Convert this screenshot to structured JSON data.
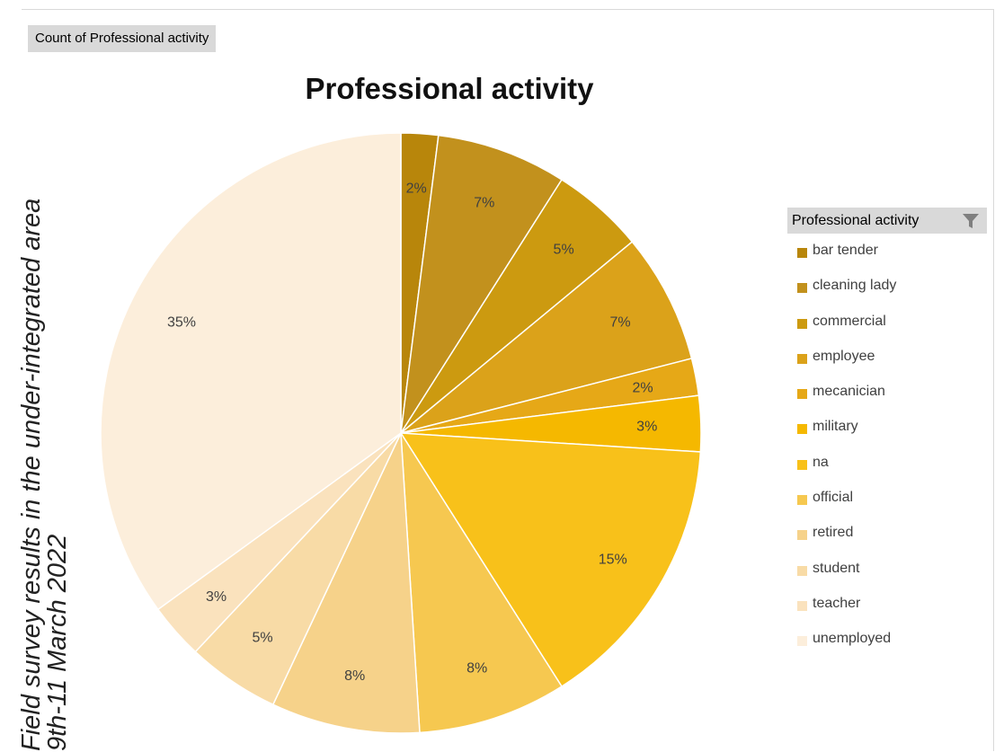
{
  "field_button": "Count of Professional activity",
  "side_caption": {
    "line1": "Field survey results in the under-integrated area",
    "line2": "9th-11 March 2022"
  },
  "legend_title": "Professional activity",
  "chart_data": {
    "type": "pie",
    "title": "Professional activity",
    "slices": [
      {
        "label": "bar tender",
        "percent": 2,
        "color": "#b8860b"
      },
      {
        "label": "cleaning lady",
        "percent": 7,
        "color": "#c2911d"
      },
      {
        "label": "commercial",
        "percent": 5,
        "color": "#cc9a10"
      },
      {
        "label": "employee",
        "percent": 7,
        "color": "#dba21a"
      },
      {
        "label": "mecanician",
        "percent": 2,
        "color": "#e6a817"
      },
      {
        "label": "military",
        "percent": 3,
        "color": "#f5b800"
      },
      {
        "label": "na",
        "percent": 15,
        "color": "#f8c11a"
      },
      {
        "label": "official",
        "percent": 8,
        "color": "#f6c850"
      },
      {
        "label": "retired",
        "percent": 8,
        "color": "#f6d28a"
      },
      {
        "label": "student",
        "percent": 5,
        "color": "#f8dba6"
      },
      {
        "label": "teacher",
        "percent": 3,
        "color": "#fae2bd"
      },
      {
        "label": "unemployed",
        "percent": 35,
        "color": "#fceedb"
      }
    ],
    "legend_position": "right"
  }
}
